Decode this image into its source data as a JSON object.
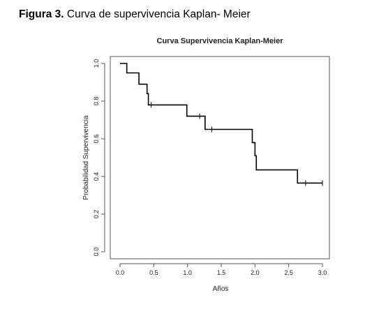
{
  "caption": {
    "label": "Figura 3.",
    "text": "Curva de supervivencia Kaplan- Meier"
  },
  "chart_data": {
    "type": "line",
    "title": "Curva Supervivencia Kaplan-Meier",
    "xlabel": "Años",
    "ylabel": "Probabilidad Supervivencia",
    "xlim": [
      0,
      3
    ],
    "ylim": [
      0,
      1
    ],
    "x_ticks": [
      "0.0",
      "0.5",
      "1.0",
      "1.5",
      "2.0",
      "2.5",
      "3.0"
    ],
    "y_ticks": [
      "0.0",
      "0.2",
      "0.4",
      "0.6",
      "0.8",
      "1.0"
    ],
    "step_curve": [
      {
        "x": 0.0,
        "y": 1.0
      },
      {
        "x": 0.1,
        "y": 0.95
      },
      {
        "x": 0.28,
        "y": 0.89
      },
      {
        "x": 0.4,
        "y": 0.84
      },
      {
        "x": 0.42,
        "y": 0.78
      },
      {
        "x": 0.99,
        "y": 0.72
      },
      {
        "x": 1.26,
        "y": 0.65
      },
      {
        "x": 1.96,
        "y": 0.58
      },
      {
        "x": 2.0,
        "y": 0.51
      },
      {
        "x": 2.02,
        "y": 0.435
      },
      {
        "x": 2.63,
        "y": 0.365
      },
      {
        "x": 3.0,
        "y": 0.365
      }
    ],
    "censored": [
      {
        "x": 0.46,
        "y": 0.78
      },
      {
        "x": 1.18,
        "y": 0.72
      },
      {
        "x": 1.36,
        "y": 0.65
      },
      {
        "x": 2.75,
        "y": 0.365
      },
      {
        "x": 3.0,
        "y": 0.365
      }
    ],
    "grid": false
  }
}
